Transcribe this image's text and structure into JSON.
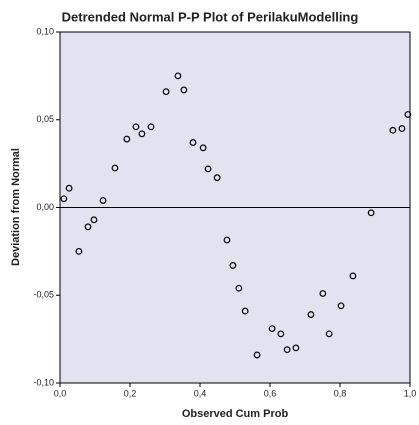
{
  "chart_data": {
    "type": "scatter",
    "title": "Detrended Normal P-P Plot of PerilakuModelling",
    "x_label": "Observed Cum Prob",
    "y_label": "Deviation from Normal",
    "x": [
      0.011,
      0.026,
      0.054,
      0.08,
      0.097,
      0.123,
      0.157,
      0.191,
      0.217,
      0.234,
      0.26,
      0.303,
      0.337,
      0.354,
      0.38,
      0.409,
      0.423,
      0.449,
      0.477,
      0.494,
      0.511,
      0.529,
      0.563,
      0.606,
      0.631,
      0.649,
      0.674,
      0.717,
      0.751,
      0.769,
      0.803,
      0.837,
      0.889,
      0.951,
      0.977,
      0.994
    ],
    "values": [
      0.005,
      0.011,
      -0.025,
      -0.011,
      -0.007,
      0.004,
      0.0225,
      0.039,
      0.046,
      0.042,
      0.046,
      0.066,
      0.075,
      0.067,
      0.037,
      0.034,
      0.022,
      0.017,
      -0.0185,
      -0.033,
      -0.046,
      -0.059,
      -0.084,
      -0.069,
      -0.072,
      -0.081,
      -0.08,
      -0.061,
      -0.049,
      -0.072,
      -0.056,
      -0.039,
      -0.003,
      0.044,
      0.045,
      0.053
    ],
    "color": "#000000",
    "background": "#e2e2f0",
    "reference_line": 0,
    "xlim": [
      0,
      1
    ],
    "ylim": [
      -0.1,
      0.1
    ],
    "xticks": [
      {
        "value": 0,
        "label": "0,0"
      },
      {
        "value": 0.2,
        "label": "0,2"
      },
      {
        "value": 0.4,
        "label": "0,4"
      },
      {
        "value": 0.6,
        "label": "0,6"
      },
      {
        "value": 0.8,
        "label": "0,8"
      },
      {
        "value": 1,
        "label": "1,0"
      }
    ],
    "yticks": [
      {
        "value": -0.1,
        "label": "-0,10"
      },
      {
        "value": -0.05,
        "label": "-0,05"
      },
      {
        "value": 0,
        "label": "0,00"
      },
      {
        "value": 0.05,
        "label": "0,05"
      },
      {
        "value": 0.1,
        "label": "0,10"
      }
    ]
  }
}
